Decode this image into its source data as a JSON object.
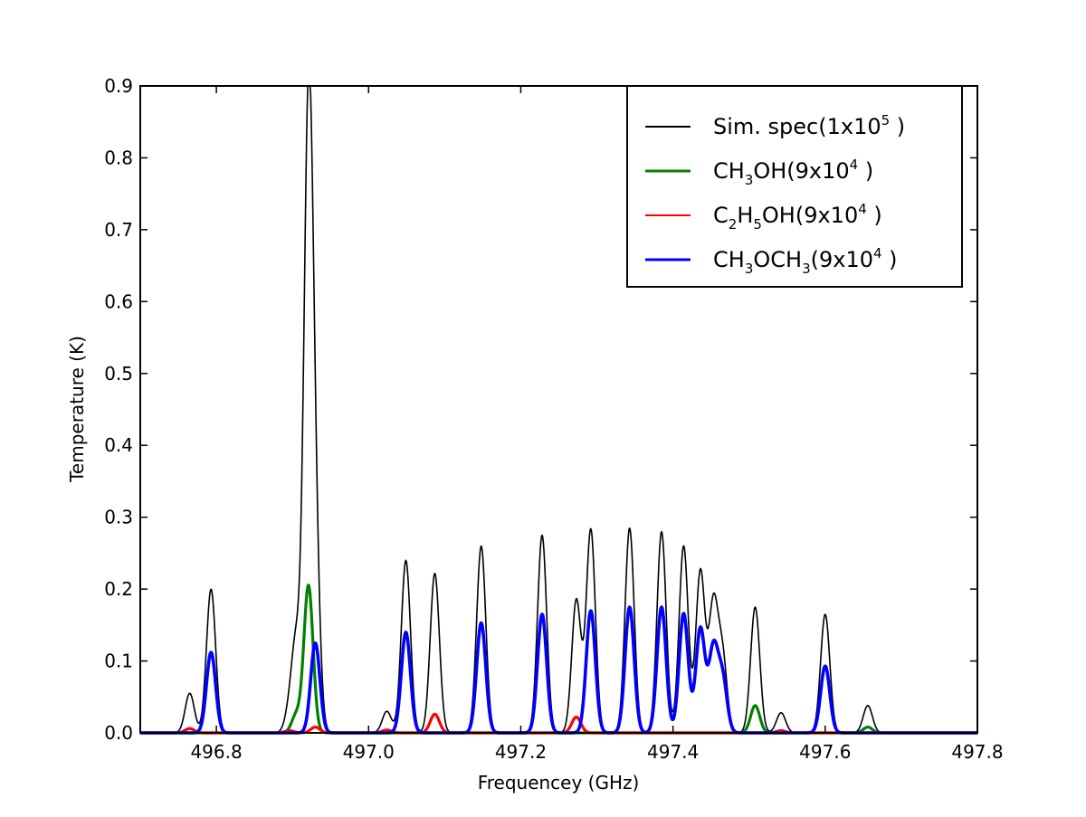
{
  "chart_data": {
    "type": "line",
    "title": "",
    "xlabel": "Frequencey (GHz)",
    "ylabel": "Temperature (K)",
    "xlim": [
      496.7,
      497.8
    ],
    "ylim": [
      0.0,
      0.9
    ],
    "xticks": [
      496.8,
      497.0,
      497.2,
      497.4,
      497.6,
      497.8
    ],
    "xtick_labels": [
      "496.8",
      "497.0",
      "497.2",
      "497.4",
      "497.6",
      "497.8"
    ],
    "yticks": [
      0.0,
      0.1,
      0.2,
      0.3,
      0.4,
      0.5,
      0.6,
      0.7,
      0.8,
      0.9
    ],
    "ytick_labels": [
      "0.0",
      "0.1",
      "0.2",
      "0.3",
      "0.4",
      "0.5",
      "0.6",
      "0.7",
      "0.8",
      "0.9"
    ],
    "grid": false,
    "legend_position": "top-right",
    "line_width": 0.006,
    "series": [
      {
        "key": "sim",
        "name": "Sim. spec(1x10^5 )",
        "color": "#000000",
        "peaks": [
          [
            496.765,
            0.055
          ],
          [
            496.793,
            0.2
          ],
          [
            496.896,
            0.028
          ],
          [
            496.905,
            0.12
          ],
          [
            496.921,
            0.85
          ],
          [
            496.93,
            0.22
          ],
          [
            497.024,
            0.03
          ],
          [
            497.049,
            0.24
          ],
          [
            497.087,
            0.222
          ],
          [
            497.148,
            0.26
          ],
          [
            497.228,
            0.275
          ],
          [
            497.273,
            0.185
          ],
          [
            497.292,
            0.283
          ],
          [
            497.343,
            0.285
          ],
          [
            497.385,
            0.28
          ],
          [
            497.414,
            0.26
          ],
          [
            497.436,
            0.225
          ],
          [
            497.453,
            0.175
          ],
          [
            497.465,
            0.105
          ],
          [
            497.508,
            0.175
          ],
          [
            497.542,
            0.028
          ],
          [
            497.6,
            0.165
          ],
          [
            497.656,
            0.038
          ]
        ]
      },
      {
        "key": "ch3oh",
        "name": "CH3OH(9x10^4 )",
        "color": "#008000",
        "peaks": [
          [
            496.905,
            0.025
          ],
          [
            496.921,
            0.205
          ],
          [
            497.508,
            0.038
          ],
          [
            497.656,
            0.008
          ]
        ]
      },
      {
        "key": "c2h5oh",
        "name": "C2H5OH(9x10^4 )",
        "color": "#ff0000",
        "peaks": [
          [
            496.765,
            0.006
          ],
          [
            496.896,
            0.003
          ],
          [
            496.93,
            0.008
          ],
          [
            497.024,
            0.004
          ],
          [
            497.087,
            0.026
          ],
          [
            497.273,
            0.022
          ],
          [
            497.542,
            0.003
          ]
        ]
      },
      {
        "key": "ch3och3",
        "name": "CH3OCH3(9x10^4 )",
        "color": "#0000ff",
        "peaks": [
          [
            496.793,
            0.112
          ],
          [
            496.93,
            0.125
          ],
          [
            497.049,
            0.14
          ],
          [
            497.148,
            0.153
          ],
          [
            497.228,
            0.165
          ],
          [
            497.292,
            0.17
          ],
          [
            497.343,
            0.175
          ],
          [
            497.385,
            0.175
          ],
          [
            497.414,
            0.166
          ],
          [
            497.436,
            0.145
          ],
          [
            497.453,
            0.115
          ],
          [
            497.465,
            0.075
          ],
          [
            497.6,
            0.093
          ]
        ]
      }
    ]
  },
  "legend": {
    "items": [
      {
        "parts": [
          "Sim. spec(1x10",
          "5",
          " )"
        ],
        "styles": [
          "n",
          "sup",
          "n"
        ],
        "color": "#000000",
        "stroke": 2
      },
      {
        "parts": [
          "CH",
          "3",
          "OH(9x10",
          "4",
          " )"
        ],
        "styles": [
          "n",
          "sub",
          "n",
          "sup",
          "n"
        ],
        "color": "#008000",
        "stroke": 3
      },
      {
        "parts": [
          "C",
          "2",
          "H",
          "5",
          "OH(9x10",
          "4",
          " )"
        ],
        "styles": [
          "n",
          "sub",
          "n",
          "sub",
          "n",
          "sup",
          "n"
        ],
        "color": "#ff0000",
        "stroke": 2
      },
      {
        "parts": [
          "CH",
          "3",
          "OCH",
          "3",
          "(9x10",
          "4",
          " )"
        ],
        "styles": [
          "n",
          "sub",
          "n",
          "sub",
          "n",
          "sup",
          "n"
        ],
        "color": "#0000ff",
        "stroke": 3
      }
    ]
  }
}
